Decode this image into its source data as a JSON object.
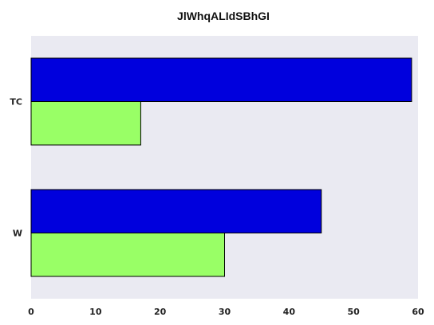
{
  "chart_data": {
    "type": "bar",
    "orientation": "horizontal",
    "title": "JlWhqALIdSBhGI",
    "xlabel": "",
    "ylabel": "",
    "categories": [
      "TC",
      "W"
    ],
    "series": [
      {
        "values": [
          59,
          45
        ],
        "color": "#0000dd"
      },
      {
        "values": [
          17,
          30
        ],
        "color": "#99ff66"
      }
    ],
    "xlim": [
      0,
      60
    ],
    "xticks": [
      0,
      10,
      20,
      30,
      40,
      50,
      60
    ],
    "grid": false,
    "legend": "none",
    "plot_background": "#eaeaf2"
  }
}
